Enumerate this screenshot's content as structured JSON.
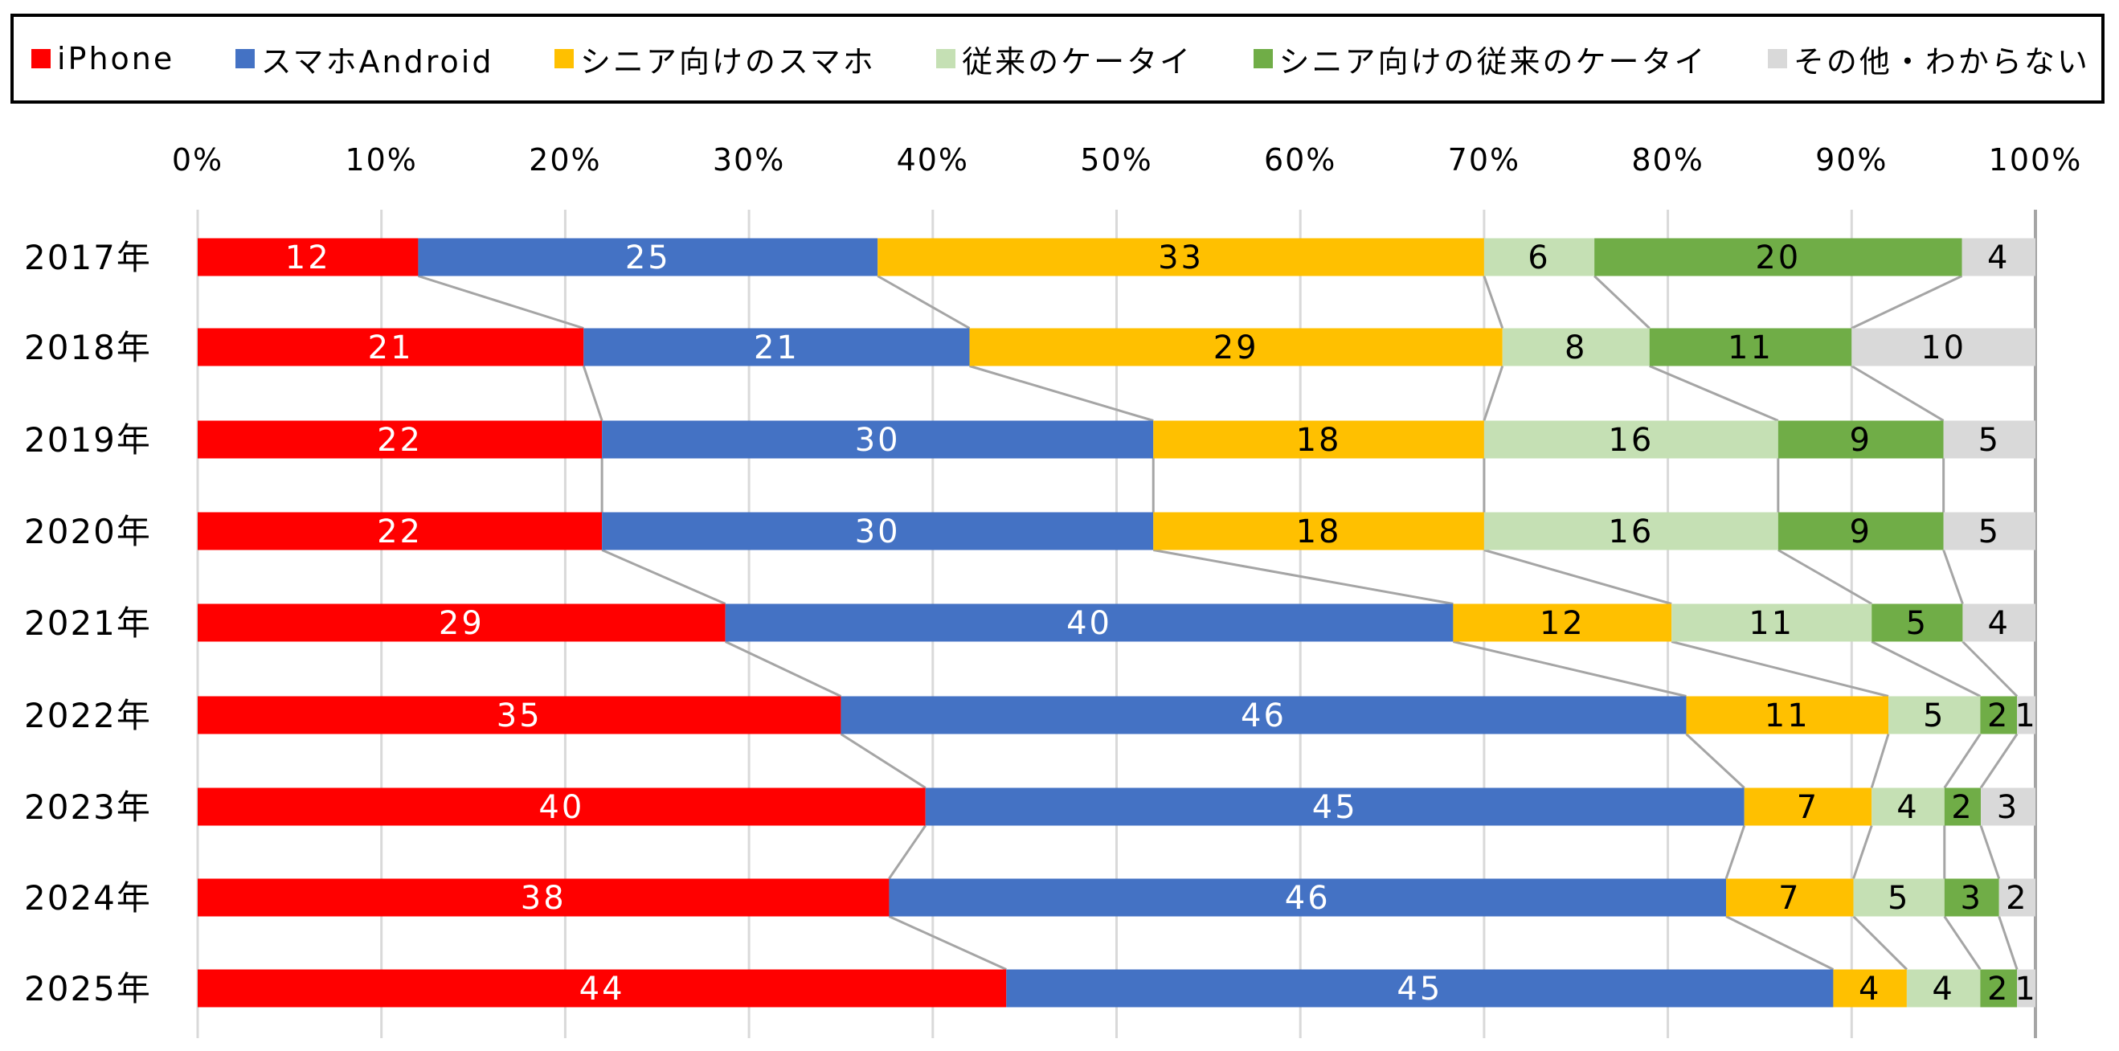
{
  "chart_data": {
    "type": "bar",
    "orientation": "horizontal",
    "stacked": "percent",
    "title": "",
    "xlabel": "",
    "ylabel": "",
    "xlim": [
      0,
      100
    ],
    "x_ticks": [
      "0%",
      "10%",
      "20%",
      "30%",
      "40%",
      "50%",
      "60%",
      "70%",
      "80%",
      "90%",
      "100%"
    ],
    "grid": true,
    "legend_position": "top",
    "categories": [
      "2017年",
      "2018年",
      "2019年",
      "2020年",
      "2021年",
      "2022年",
      "2023年",
      "2024年",
      "2025年"
    ],
    "series": [
      {
        "name": "iPhone",
        "color": "#ff0000",
        "label_color": "#ffffff",
        "values": [
          12,
          21,
          22,
          22,
          29,
          35,
          40,
          38,
          44
        ]
      },
      {
        "name": "スマホAndroid",
        "color": "#4472c4",
        "label_color": "#ffffff",
        "values": [
          25,
          21,
          30,
          30,
          40,
          46,
          45,
          46,
          45
        ]
      },
      {
        "name": "シニア向けのスマホ",
        "color": "#ffc000",
        "label_color": "#000000",
        "values": [
          33,
          29,
          18,
          18,
          12,
          11,
          7,
          7,
          4
        ]
      },
      {
        "name": "従来のケータイ",
        "color": "#c5e0b4",
        "label_color": "#000000",
        "values": [
          6,
          8,
          16,
          16,
          11,
          5,
          4,
          5,
          4
        ]
      },
      {
        "name": "シニア向けの従来のケータイ",
        "color": "#70ad47",
        "label_color": "#000000",
        "values": [
          20,
          11,
          9,
          9,
          5,
          2,
          2,
          3,
          2
        ]
      },
      {
        "name": "その他・わからない",
        "color": "#d9d9d9",
        "label_color": "#000000",
        "values": [
          4,
          10,
          5,
          5,
          4,
          1,
          3,
          2,
          1
        ]
      }
    ]
  }
}
